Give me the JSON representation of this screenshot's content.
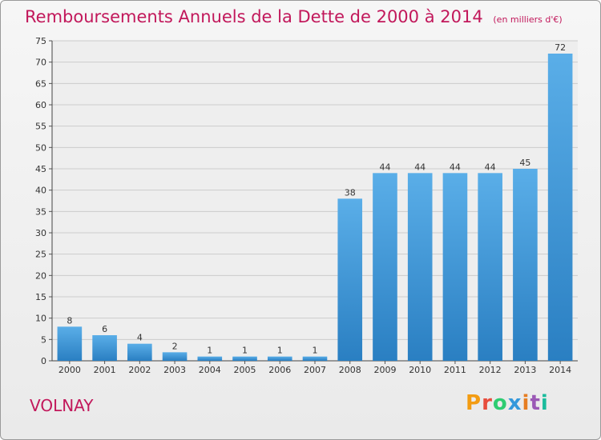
{
  "header": {
    "title": "Remboursements Annuels de la Dette de 2000 à 2014",
    "subtitle": "(en milliers d'€)"
  },
  "footer": {
    "place": "VOLNAY",
    "brand": "Proxiti",
    "brand_colors": [
      "#f39c12",
      "#e74c3c",
      "#2ecc71",
      "#3498db",
      "#e67e22",
      "#9b59b6",
      "#1abc9c"
    ]
  },
  "colors": {
    "bar_top": "#5aaee8",
    "bar_bottom": "#2a7fc2",
    "title": "#c2185b",
    "grid": "#cccccc"
  },
  "chart_data": {
    "type": "bar",
    "categories": [
      "2000",
      "2001",
      "2002",
      "2003",
      "2004",
      "2005",
      "2006",
      "2007",
      "2008",
      "2009",
      "2010",
      "2011",
      "2012",
      "2013",
      "2014"
    ],
    "values": [
      8,
      6,
      4,
      2,
      1,
      1,
      1,
      1,
      38,
      44,
      44,
      44,
      44,
      45,
      72
    ],
    "data_labels": [
      "8",
      "6",
      "4",
      "2",
      "1",
      "1",
      "1",
      "1",
      "38",
      "44",
      "44",
      "44",
      "44",
      "45",
      "72"
    ],
    "title": "Remboursements Annuels de la Dette de 2000 à 2014",
    "xlabel": "",
    "ylabel": "",
    "ylim": [
      0,
      75
    ],
    "yticks": [
      0,
      5,
      10,
      15,
      20,
      25,
      30,
      35,
      40,
      45,
      50,
      55,
      60,
      65,
      70,
      75
    ],
    "grid": true,
    "legend": "none"
  }
}
